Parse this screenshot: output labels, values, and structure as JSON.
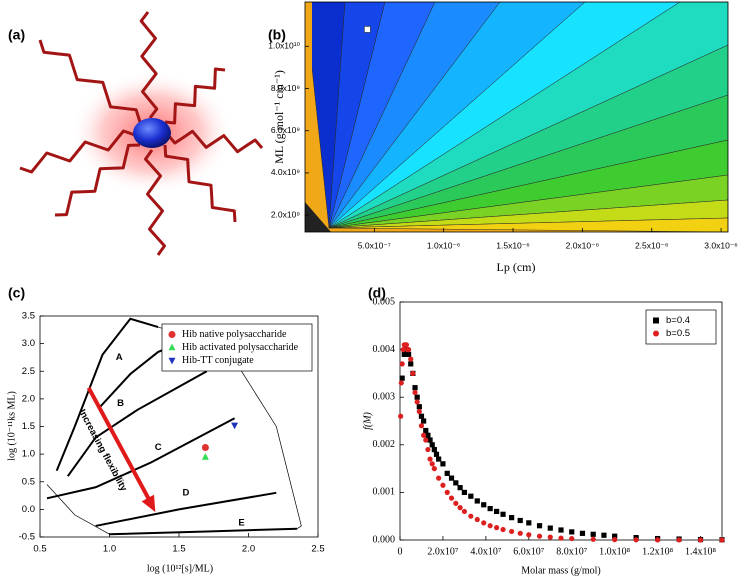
{
  "panel_labels": [
    "(a)",
    "(b)",
    "(c)",
    "(d)"
  ],
  "chart_data": [
    {
      "type": "contour",
      "xlabel": "Lp (cm)",
      "ylabel": "ML (g mol⁻¹ cm⁻¹)",
      "xlim": [
        0,
        3.05e-06
      ],
      "ylim": [
        1200000000.0,
        12100000000.0
      ],
      "xticks": [
        {
          "value": 5e-07,
          "label": "5.0x10⁻⁷"
        },
        {
          "value": 1e-06,
          "label": "1.0x10⁻⁶"
        },
        {
          "value": 1.5e-06,
          "label": "1.5x10⁻⁶"
        },
        {
          "value": 2e-06,
          "label": "2.0x10⁻⁶"
        },
        {
          "value": 2.5e-06,
          "label": "2.5x10⁻⁶"
        },
        {
          "value": 3e-06,
          "label": "3.0x10⁻⁶"
        }
      ],
      "yticks": [
        {
          "value": 2000000000.0,
          "label": "2.0x10⁹"
        },
        {
          "value": 4000000000.0,
          "label": "4.0x10⁹"
        },
        {
          "value": 6000000000.0,
          "label": "6.0x10⁹"
        },
        {
          "value": 8000000000.0,
          "label": "8.0x10⁹"
        },
        {
          "value": 10000000000.0,
          "label": "1.0x10¹⁰"
        }
      ],
      "colors": [
        "#0b2fcf",
        "#1446ea",
        "#1f66ff",
        "#1a8cff",
        "#14b4ff",
        "#17e2ff",
        "#1fdcc0",
        "#23d08a",
        "#2ac95a",
        "#3fcc30",
        "#79d224",
        "#c4dc18",
        "#f2d012",
        "#f0a818"
      ],
      "series": [
        {
          "color": "#ffffff",
          "marker": "square",
          "x": [
            4.5e-07
          ],
          "values": [
            10800000000.0
          ]
        }
      ]
    },
    {
      "type": "scatter",
      "xlabel": "log (10¹²[s]/ML)",
      "ylabel": "log (10⁻¹¹ks ML)",
      "xlim": [
        0.5,
        2.5
      ],
      "ylim": [
        -0.5,
        3.5
      ],
      "xticks": [
        0.5,
        {
          "value": 1,
          "label": "1.0"
        },
        1.5,
        {
          "value": 2,
          "label": "2.0"
        },
        2.5
      ],
      "yticks": [
        -0.5,
        {
          "value": 0,
          "label": "0.0"
        },
        0.5,
        {
          "value": 1,
          "label": "1.0"
        },
        1.5,
        {
          "value": 2,
          "label": "2.0"
        },
        2.5,
        {
          "value": 3,
          "label": "3.0"
        },
        3.5
      ],
      "legend": "upper right",
      "zone_labels": [
        "A",
        "B",
        "C",
        "D",
        "E"
      ],
      "annotation": "Increasing flexibility",
      "series": [
        {
          "name": "Hib native polysaccharide",
          "color": "#e03030",
          "marker": "circle",
          "x": [
            1.69
          ],
          "values": [
            1.12
          ]
        },
        {
          "name": "Hib activated polysaccharide",
          "color": "#33dd55",
          "marker": "triangle",
          "x": [
            1.69
          ],
          "values": [
            0.95
          ]
        },
        {
          "name": "Hib-TT conjugate",
          "color": "#2233bb",
          "marker": "triangle-down",
          "x": [
            1.9
          ],
          "values": [
            1.52
          ]
        }
      ]
    },
    {
      "type": "scatter",
      "xlabel": "Molar mass (g/mol)",
      "ylabel": "f(M)",
      "xlim": [
        0,
        150000000.0
      ],
      "ylim": [
        0,
        0.005
      ],
      "xticks": [
        0,
        {
          "value": 20000000.0,
          "label": "2.0x10⁷"
        },
        {
          "value": 40000000.0,
          "label": "4.0x10⁷"
        },
        {
          "value": 60000000.0,
          "label": "6.0x10⁷"
        },
        {
          "value": 80000000.0,
          "label": "8.0x10⁷"
        },
        {
          "value": 100000000.0,
          "label": "1.0x10⁸"
        },
        {
          "value": 120000000.0,
          "label": "1.2x10⁸"
        },
        {
          "value": 140000000.0,
          "label": "1.4x10⁸"
        }
      ],
      "yticks": [
        {
          "value": 0,
          "label": "0.000"
        },
        {
          "value": 0.001,
          "label": "0.001"
        },
        {
          "value": 0.002,
          "label": "0.002"
        },
        {
          "value": 0.003,
          "label": "0.003"
        },
        {
          "value": 0.004,
          "label": "0.004"
        },
        {
          "value": 0.005,
          "label": "0.005"
        }
      ],
      "legend": "upper right",
      "series": [
        {
          "name": "b=0.4",
          "color": "#000000",
          "marker": "square",
          "x": [
            1000000,
            2000000,
            3000000,
            4000000,
            5000000,
            6000000,
            7000000,
            8000000,
            9000000,
            10000000,
            11000000,
            12000000,
            13000000,
            14000000,
            15000000,
            16000000,
            17000000,
            18000000,
            20000000,
            22000000,
            24000000,
            26000000,
            28000000,
            30000000,
            33000000,
            36000000,
            39000000,
            42000000,
            45000000,
            48000000,
            52000000,
            56000000,
            60000000,
            65000000,
            70000000,
            75000000,
            80000000,
            85000000,
            90000000,
            95000000,
            100000000,
            110000000,
            120000000,
            130000000,
            140000000,
            150000000
          ],
          "values": [
            0.0034,
            0.0039,
            0.004,
            0.0039,
            0.0037,
            0.0035,
            0.0032,
            0.003,
            0.0028,
            0.0026,
            0.0025,
            0.0023,
            0.0022,
            0.0021,
            0.002,
            0.0019,
            0.0018,
            0.0017,
            0.0016,
            0.0014,
            0.0013,
            0.0012,
            0.0011,
            0.001,
            0.00092,
            0.00082,
            0.00074,
            0.00066,
            0.0006,
            0.00054,
            0.00047,
            0.00041,
            0.00036,
            0.0003,
            0.00025,
            0.00021,
            0.00017,
            0.00014,
            0.00012,
            0.0001,
            8e-05,
            5e-05,
            3e-05,
            2e-05,
            1e-05,
            5e-06
          ]
        },
        {
          "name": "b=0.5",
          "color": "#dd1f1f",
          "marker": "circle",
          "x": [
            300000,
            600000,
            1000000,
            1500000,
            2000000,
            2500000,
            3000000,
            3500000,
            4000000,
            5000000,
            6000000,
            7000000,
            8000000,
            9000000,
            10000000,
            11000000,
            12000000,
            13000000,
            14000000,
            15000000,
            16000000,
            18000000,
            20000000,
            22000000,
            24000000,
            26000000,
            28000000,
            30000000,
            33000000,
            36000000,
            39000000,
            42000000,
            45000000,
            48000000,
            52000000,
            56000000,
            60000000,
            65000000,
            70000000,
            75000000,
            80000000,
            90000000,
            100000000,
            110000000,
            120000000,
            130000000,
            140000000,
            150000000
          ],
          "values": [
            0.0026,
            0.0033,
            0.0037,
            0.004,
            0.0041,
            0.0041,
            0.0041,
            0.004,
            0.004,
            0.0038,
            0.0035,
            0.0031,
            0.0029,
            0.0027,
            0.0024,
            0.0022,
            0.0021,
            0.0019,
            0.0017,
            0.0016,
            0.0015,
            0.0013,
            0.00115,
            0.001,
            0.00088,
            0.00077,
            0.00068,
            0.0006,
            0.0005,
            0.00043,
            0.00036,
            0.0003,
            0.00026,
            0.00022,
            0.00018,
            0.00014,
            0.00011,
            8e-05,
            6e-05,
            4e-05,
            3e-05,
            1.5e-05,
            8e-06,
            4e-06,
            2e-06,
            1e-06,
            5e-07,
            2e-07
          ]
        }
      ]
    }
  ]
}
